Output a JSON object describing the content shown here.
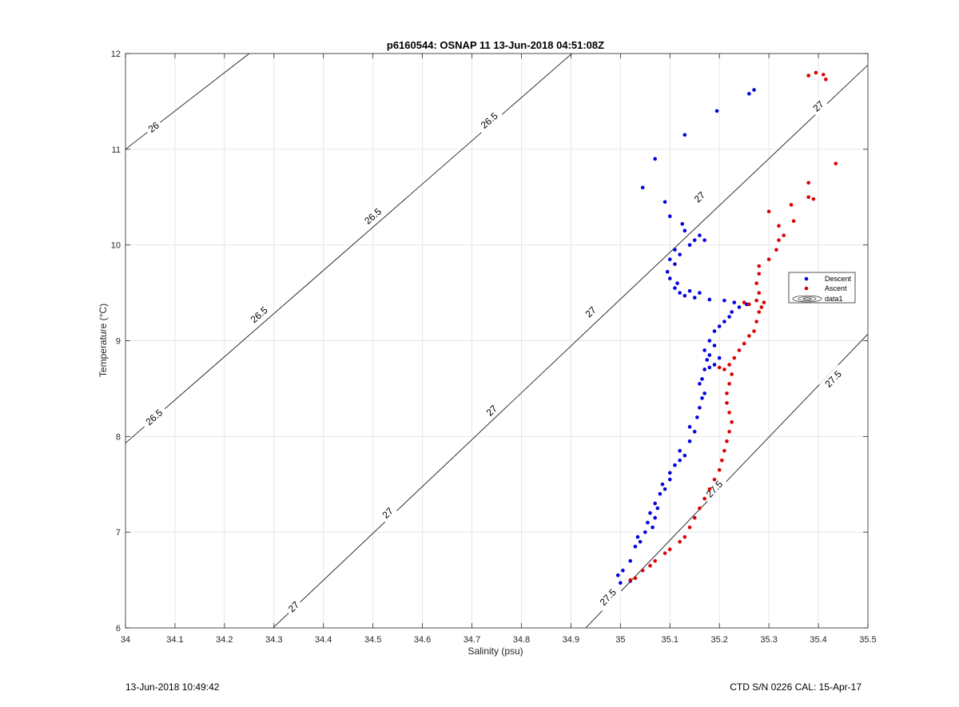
{
  "footer": {
    "timestamp": "13-Jun-2018 10:49:42",
    "calibration": "CTD S/N 0226  CAL: 15-Apr-17"
  },
  "chart_data": {
    "type": "scatter",
    "title": "p6160544: OSNAP 11 13-Jun-2018 04:51:08Z",
    "xlabel": "Salinity (psu)",
    "ylabel": "Temperature (°C)",
    "xlim": [
      34,
      35.5
    ],
    "ylim": [
      6,
      12
    ],
    "xticks": [
      "34",
      "34.1",
      "34.2",
      "34.3",
      "34.4",
      "34.5",
      "34.6",
      "34.7",
      "34.8",
      "34.9",
      "35",
      "35.1",
      "35.2",
      "35.3",
      "35.4",
      "35.5"
    ],
    "yticks": [
      "6",
      "7",
      "8",
      "9",
      "10",
      "11",
      "12"
    ],
    "grid": true,
    "legend": {
      "placement": "right",
      "entries": [
        "Descent",
        "Ascent",
        "data1"
      ]
    },
    "colors": {
      "descent": "#0000dd",
      "ascent": "#dd0000",
      "contour": "#000000"
    },
    "contours": [
      {
        "level": "26",
        "points": [
          [
            34.0,
            11.0
          ],
          [
            34.25,
            12.0
          ]
        ],
        "labels": [
          {
            "text": "26",
            "s": 34.057,
            "t": 11.23
          }
        ]
      },
      {
        "level": "26.5",
        "points": [
          [
            34.0,
            7.93
          ],
          [
            34.902,
            12.0
          ]
        ],
        "labels": [
          {
            "text": "26.5",
            "s": 34.058,
            "t": 8.2
          },
          {
            "text": "26.5",
            "s": 34.27,
            "t": 9.27
          },
          {
            "text": "26.5",
            "s": 34.5,
            "t": 10.3
          },
          {
            "text": "26.5",
            "s": 34.735,
            "t": 11.3
          }
        ]
      },
      {
        "level": "27",
        "points": [
          [
            34.298,
            6.0
          ],
          [
            35.5,
            11.88
          ]
        ],
        "labels": [
          {
            "text": "27",
            "s": 34.34,
            "t": 6.22
          },
          {
            "text": "27",
            "s": 34.53,
            "t": 7.2
          },
          {
            "text": "27",
            "s": 34.74,
            "t": 8.27
          },
          {
            "text": "27",
            "s": 34.94,
            "t": 9.3
          },
          {
            "text": "27",
            "s": 35.16,
            "t": 10.5
          },
          {
            "text": "27",
            "s": 35.4,
            "t": 11.45
          }
        ]
      },
      {
        "level": "27.5",
        "points": [
          [
            34.93,
            6.0
          ],
          [
            35.5,
            9.07
          ]
        ],
        "labels": [
          {
            "text": "27.5",
            "s": 34.975,
            "t": 6.32
          },
          {
            "text": "27.5",
            "s": 35.19,
            "t": 7.45
          },
          {
            "text": "27.5",
            "s": 35.43,
            "t": 8.6
          }
        ]
      }
    ],
    "series": [
      {
        "name": "Descent",
        "points": [
          [
            35.0,
            6.47
          ],
          [
            35.02,
            6.49
          ],
          [
            34.995,
            6.55
          ],
          [
            35.005,
            6.6
          ],
          [
            35.02,
            6.7
          ],
          [
            35.03,
            6.85
          ],
          [
            35.04,
            6.9
          ],
          [
            35.035,
            6.95
          ],
          [
            35.05,
            7.0
          ],
          [
            35.065,
            7.05
          ],
          [
            35.055,
            7.1
          ],
          [
            35.07,
            7.15
          ],
          [
            35.06,
            7.2
          ],
          [
            35.075,
            7.25
          ],
          [
            35.07,
            7.3
          ],
          [
            35.08,
            7.4
          ],
          [
            35.09,
            7.45
          ],
          [
            35.085,
            7.5
          ],
          [
            35.1,
            7.55
          ],
          [
            35.1,
            7.62
          ],
          [
            35.11,
            7.7
          ],
          [
            35.12,
            7.75
          ],
          [
            35.13,
            7.8
          ],
          [
            35.12,
            7.85
          ],
          [
            35.14,
            7.95
          ],
          [
            35.15,
            8.05
          ],
          [
            35.14,
            8.1
          ],
          [
            35.155,
            8.2
          ],
          [
            35.16,
            8.3
          ],
          [
            35.165,
            8.4
          ],
          [
            35.17,
            8.45
          ],
          [
            35.16,
            8.55
          ],
          [
            35.165,
            8.6
          ],
          [
            35.17,
            8.7
          ],
          [
            35.18,
            8.72
          ],
          [
            35.19,
            8.75
          ],
          [
            35.175,
            8.8
          ],
          [
            35.18,
            8.85
          ],
          [
            35.2,
            8.82
          ],
          [
            35.17,
            8.9
          ],
          [
            35.19,
            8.95
          ],
          [
            35.18,
            9.0
          ],
          [
            35.19,
            9.1
          ],
          [
            35.2,
            9.15
          ],
          [
            35.21,
            9.2
          ],
          [
            35.22,
            9.25
          ],
          [
            35.225,
            9.3
          ],
          [
            35.24,
            9.35
          ],
          [
            35.255,
            9.38
          ],
          [
            35.23,
            9.4
          ],
          [
            35.21,
            9.42
          ],
          [
            35.18,
            9.43
          ],
          [
            35.15,
            9.45
          ],
          [
            35.13,
            9.47
          ],
          [
            35.12,
            9.5
          ],
          [
            35.14,
            9.52
          ],
          [
            35.16,
            9.5
          ],
          [
            35.11,
            9.55
          ],
          [
            35.115,
            9.6
          ],
          [
            35.1,
            9.65
          ],
          [
            35.095,
            9.72
          ],
          [
            35.11,
            9.8
          ],
          [
            35.1,
            9.85
          ],
          [
            35.12,
            9.9
          ],
          [
            35.11,
            9.95
          ],
          [
            35.14,
            10.0
          ],
          [
            35.15,
            10.05
          ],
          [
            35.17,
            10.05
          ],
          [
            35.16,
            10.1
          ],
          [
            35.13,
            10.15
          ],
          [
            35.125,
            10.22
          ],
          [
            35.1,
            10.3
          ],
          [
            35.09,
            10.45
          ],
          [
            35.045,
            10.6
          ],
          [
            35.07,
            10.9
          ],
          [
            35.13,
            11.15
          ],
          [
            35.195,
            11.4
          ],
          [
            35.26,
            11.58
          ],
          [
            35.27,
            11.62
          ]
        ]
      },
      {
        "name": "Ascent",
        "points": [
          [
            35.02,
            6.5
          ],
          [
            35.03,
            6.52
          ],
          [
            35.045,
            6.6
          ],
          [
            35.06,
            6.65
          ],
          [
            35.07,
            6.7
          ],
          [
            35.09,
            6.78
          ],
          [
            35.1,
            6.82
          ],
          [
            35.12,
            6.9
          ],
          [
            35.13,
            6.95
          ],
          [
            35.14,
            7.05
          ],
          [
            35.15,
            7.15
          ],
          [
            35.16,
            7.25
          ],
          [
            35.17,
            7.35
          ],
          [
            35.18,
            7.45
          ],
          [
            35.19,
            7.55
          ],
          [
            35.2,
            7.65
          ],
          [
            35.205,
            7.75
          ],
          [
            35.21,
            7.85
          ],
          [
            35.215,
            7.95
          ],
          [
            35.22,
            8.05
          ],
          [
            35.225,
            8.15
          ],
          [
            35.22,
            8.25
          ],
          [
            35.215,
            8.35
          ],
          [
            35.215,
            8.45
          ],
          [
            35.22,
            8.55
          ],
          [
            35.225,
            8.65
          ],
          [
            35.21,
            8.7
          ],
          [
            35.2,
            8.72
          ],
          [
            35.22,
            8.75
          ],
          [
            35.23,
            8.82
          ],
          [
            35.24,
            8.9
          ],
          [
            35.25,
            8.97
          ],
          [
            35.26,
            9.05
          ],
          [
            35.27,
            9.1
          ],
          [
            35.275,
            9.2
          ],
          [
            35.28,
            9.3
          ],
          [
            35.285,
            9.35
          ],
          [
            35.26,
            9.38
          ],
          [
            35.25,
            9.4
          ],
          [
            35.275,
            9.42
          ],
          [
            35.29,
            9.4
          ],
          [
            35.28,
            9.5
          ],
          [
            35.275,
            9.6
          ],
          [
            35.28,
            9.7
          ],
          [
            35.28,
            9.78
          ],
          [
            35.3,
            9.85
          ],
          [
            35.315,
            9.95
          ],
          [
            35.32,
            10.05
          ],
          [
            35.33,
            10.1
          ],
          [
            35.32,
            10.2
          ],
          [
            35.35,
            10.25
          ],
          [
            35.3,
            10.35
          ],
          [
            35.345,
            10.42
          ],
          [
            35.38,
            10.5
          ],
          [
            35.39,
            10.48
          ],
          [
            35.38,
            10.65
          ],
          [
            35.435,
            10.85
          ],
          [
            35.38,
            11.77
          ],
          [
            35.395,
            11.8
          ],
          [
            35.41,
            11.78
          ],
          [
            35.415,
            11.73
          ]
        ]
      }
    ]
  }
}
